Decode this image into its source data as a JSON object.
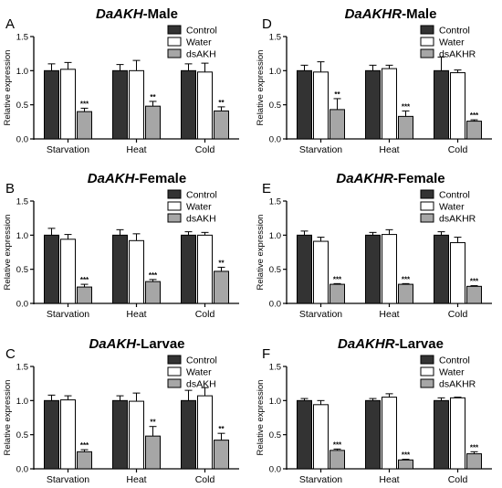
{
  "colors": {
    "control": "#333333",
    "water": "#ffffff",
    "ds": "#a6a6a6"
  },
  "chart_data": [
    {
      "type": "bar",
      "letter": "A",
      "title_gene": "DaAKH",
      "title_rest": "-Male",
      "ylabel": "Relative expression",
      "ylim": [
        0,
        1.5
      ],
      "yticks": [
        "0.0",
        "0.5",
        "1.0",
        "1.5"
      ],
      "categories": [
        "Starvation",
        "Heat",
        "Cold"
      ],
      "legend_position": "top-right",
      "series": [
        {
          "name": "Control",
          "values": [
            1.0,
            1.0,
            1.0
          ],
          "errors": [
            0.1,
            0.09,
            0.1
          ]
        },
        {
          "name": "Water",
          "values": [
            1.02,
            1.0,
            0.98
          ],
          "errors": [
            0.1,
            0.15,
            0.13
          ]
        },
        {
          "name": "dsAKH",
          "values": [
            0.4,
            0.48,
            0.41
          ],
          "errors": [
            0.05,
            0.07,
            0.06
          ],
          "labels": [
            "***",
            "**",
            "**"
          ]
        }
      ]
    },
    {
      "type": "bar",
      "letter": "D",
      "title_gene": "DaAKHR",
      "title_rest": "-Male",
      "ylabel": "Relative expression",
      "ylim": [
        0,
        1.5
      ],
      "yticks": [
        "0.0",
        "0.5",
        "1.0",
        "1.5"
      ],
      "categories": [
        "Starvation",
        "Heat",
        "Cold"
      ],
      "legend_position": "top-right",
      "series": [
        {
          "name": "Control",
          "values": [
            1.0,
            1.0,
            1.0
          ],
          "errors": [
            0.08,
            0.08,
            0.2
          ]
        },
        {
          "name": "Water",
          "values": [
            0.98,
            1.03,
            0.97
          ],
          "errors": [
            0.15,
            0.05,
            0.04
          ]
        },
        {
          "name": "dsAKHR",
          "values": [
            0.43,
            0.33,
            0.26
          ],
          "errors": [
            0.16,
            0.08,
            0.02
          ],
          "labels": [
            "**",
            "***",
            "***"
          ]
        }
      ]
    },
    {
      "type": "bar",
      "letter": "B",
      "title_gene": "DaAKH",
      "title_rest": "-Female",
      "ylabel": "Relative expression",
      "ylim": [
        0,
        1.5
      ],
      "yticks": [
        "0.0",
        "0.5",
        "1.0",
        "1.5"
      ],
      "categories": [
        "Starvation",
        "Heat",
        "Cold"
      ],
      "legend_position": "top-right",
      "series": [
        {
          "name": "Control",
          "values": [
            1.0,
            1.0,
            1.0
          ],
          "errors": [
            0.1,
            0.08,
            0.05
          ]
        },
        {
          "name": "Water",
          "values": [
            0.94,
            0.92,
            1.0
          ],
          "errors": [
            0.07,
            0.1,
            0.04
          ]
        },
        {
          "name": "dsAKH",
          "values": [
            0.24,
            0.32,
            0.47
          ],
          "errors": [
            0.04,
            0.03,
            0.06
          ],
          "labels": [
            "***",
            "***",
            "**"
          ]
        }
      ]
    },
    {
      "type": "bar",
      "letter": "E",
      "title_gene": "DaAKHR",
      "title_rest": "-Female",
      "ylabel": "Relative expression",
      "ylim": [
        0,
        1.5
      ],
      "yticks": [
        "0.0",
        "0.5",
        "1.0",
        "1.5"
      ],
      "categories": [
        "Starvation",
        "Heat",
        "Cold"
      ],
      "legend_position": "top-right",
      "series": [
        {
          "name": "Control",
          "values": [
            1.0,
            1.0,
            1.0
          ],
          "errors": [
            0.06,
            0.04,
            0.05
          ]
        },
        {
          "name": "Water",
          "values": [
            0.91,
            1.01,
            0.89
          ],
          "errors": [
            0.06,
            0.07,
            0.08
          ]
        },
        {
          "name": "dsAKHR",
          "values": [
            0.28,
            0.28,
            0.25
          ],
          "errors": [
            0.01,
            0.01,
            0.01
          ],
          "labels": [
            "***",
            "***",
            "***"
          ]
        }
      ]
    },
    {
      "type": "bar",
      "letter": "C",
      "title_gene": "DaAKH",
      "title_rest": "-Larvae",
      "ylabel": "Relative expression",
      "ylim": [
        0,
        1.5
      ],
      "yticks": [
        "0.0",
        "0.5",
        "1.0",
        "1.5"
      ],
      "categories": [
        "Starvation",
        "Heat",
        "Cold"
      ],
      "legend_position": "top-right",
      "series": [
        {
          "name": "Control",
          "values": [
            1.0,
            1.0,
            1.0
          ],
          "errors": [
            0.08,
            0.07,
            0.15
          ]
        },
        {
          "name": "Water",
          "values": [
            1.01,
            0.99,
            1.07
          ],
          "errors": [
            0.06,
            0.12,
            0.12
          ]
        },
        {
          "name": "dsAKH",
          "values": [
            0.25,
            0.48,
            0.42
          ],
          "errors": [
            0.03,
            0.14,
            0.1
          ],
          "labels": [
            "***",
            "**",
            "**"
          ]
        }
      ]
    },
    {
      "type": "bar",
      "letter": "F",
      "title_gene": "DaAKHR",
      "title_rest": "-Larvae",
      "ylabel": "Relative expression",
      "ylim": [
        0,
        1.5
      ],
      "yticks": [
        "0.0",
        "0.5",
        "1.0",
        "1.5"
      ],
      "categories": [
        "Starvation",
        "Heat",
        "Cold"
      ],
      "legend_position": "top-right",
      "series": [
        {
          "name": "Control",
          "values": [
            1.0,
            1.0,
            1.0
          ],
          "errors": [
            0.03,
            0.03,
            0.04
          ]
        },
        {
          "name": "Water",
          "values": [
            0.94,
            1.05,
            1.04
          ],
          "errors": [
            0.06,
            0.05,
            0.01
          ]
        },
        {
          "name": "dsAKHR",
          "values": [
            0.27,
            0.13,
            0.22
          ],
          "errors": [
            0.02,
            0.01,
            0.03
          ],
          "labels": [
            "***",
            "***",
            "***"
          ]
        }
      ]
    }
  ]
}
